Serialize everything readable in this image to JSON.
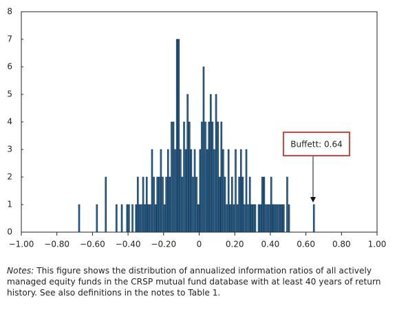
{
  "chart_data": {
    "type": "histogram",
    "bins": [
      -0.7,
      -0.69,
      -0.68,
      -0.67,
      -0.66,
      -0.65,
      -0.64,
      -0.63,
      -0.62,
      -0.61,
      -0.6,
      -0.59,
      -0.58,
      -0.57,
      -0.56,
      -0.55,
      -0.54,
      -0.53,
      -0.52,
      -0.51,
      -0.5,
      -0.49,
      -0.48,
      -0.47,
      -0.46,
      -0.45,
      -0.44,
      -0.43,
      -0.42,
      -0.41,
      -0.4,
      -0.39,
      -0.38,
      -0.37,
      -0.36,
      -0.35,
      -0.34,
      -0.33,
      -0.32,
      -0.31,
      -0.3,
      -0.29,
      -0.28,
      -0.27,
      -0.26,
      -0.25,
      -0.24,
      -0.23,
      -0.22,
      -0.21,
      -0.2,
      -0.19,
      -0.18,
      -0.17,
      -0.16,
      -0.15,
      -0.14,
      -0.13,
      -0.12,
      -0.11,
      -0.1,
      -0.09,
      -0.08,
      -0.07,
      -0.06,
      -0.05,
      -0.04,
      -0.03,
      -0.02,
      -0.01,
      0,
      0.01,
      0.02,
      0.03,
      0.04,
      0.05,
      0.06,
      0.07,
      0.08,
      0.09,
      0.1,
      0.11,
      0.12,
      0.13,
      0.14,
      0.15,
      0.16,
      0.17,
      0.18,
      0.19,
      0.2,
      0.21,
      0.22,
      0.23,
      0.24,
      0.25,
      0.26,
      0.27,
      0.28,
      0.29,
      0.3,
      0.31,
      0.32,
      0.33,
      0.34,
      0.35,
      0.36,
      0.37,
      0.38,
      0.39,
      0.4,
      0.41,
      0.42,
      0.43,
      0.44,
      0.45,
      0.46,
      0.47,
      0.48,
      0.49,
      0.5,
      0.51,
      0.52,
      0.53,
      0.54,
      0.55,
      0.56,
      0.57,
      0.58,
      0.59,
      0.6,
      0.61,
      0.62,
      0.63,
      0.64,
      0.65
    ],
    "values": [
      0,
      0,
      1,
      0,
      0,
      0,
      0,
      0,
      0,
      0,
      0,
      0,
      1,
      0,
      0,
      0,
      0,
      2,
      0,
      0,
      0,
      0,
      0,
      1,
      0,
      0,
      1,
      0,
      0,
      1,
      1,
      0,
      1,
      0,
      1,
      2,
      1,
      1,
      2,
      1,
      2,
      1,
      1,
      3,
      2,
      1,
      2,
      2,
      3,
      2,
      1,
      2,
      3,
      2,
      4,
      4,
      3,
      7,
      7,
      3,
      2,
      4,
      3,
      5,
      4,
      3,
      2,
      3,
      2,
      1,
      3,
      4,
      6,
      4,
      3,
      4,
      5,
      4,
      3,
      5,
      4,
      2,
      4,
      3,
      2,
      1,
      3,
      1,
      2,
      1,
      3,
      1,
      2,
      3,
      2,
      1,
      3,
      1,
      2,
      1,
      1,
      1,
      0,
      1,
      1,
      2,
      2,
      1,
      1,
      1,
      2,
      1,
      1,
      1,
      1,
      1,
      1,
      1,
      0,
      2,
      1,
      0,
      0,
      0,
      0,
      0,
      0,
      0,
      0,
      0,
      0,
      0,
      0,
      0,
      1
    ],
    "color": "#2e6a9a",
    "xlim": [
      -1,
      1
    ],
    "xticks": [
      {
        "value": -1,
        "label": "−1.00"
      },
      {
        "value": -0.8,
        "label": "−0.80"
      },
      {
        "value": -0.6,
        "label": "−0.60"
      },
      {
        "value": -0.4,
        "label": "−0.40"
      },
      {
        "value": -0.2,
        "label": "−0.20"
      },
      0,
      {
        "value": 0.2,
        "label": "0.20"
      },
      {
        "value": 0.4,
        "label": "0.40"
      },
      {
        "value": 0.6,
        "label": "0.60"
      },
      {
        "value": 0.8,
        "label": "0.80"
      },
      {
        "value": 1,
        "label": "1.00"
      }
    ],
    "ylim": [
      0,
      8
    ],
    "yticks": [
      0,
      1,
      2,
      3,
      4,
      5,
      6,
      7,
      8
    ],
    "annotation": "Buffett: 0.64",
    "notes_label": "Notes:",
    "notes": "This figure shows the distribution of annualized information ratios of all actively managed equity funds in the CRSP mutual fund database with at least 40 years of return history. See also definitions in the notes to Table 1."
  }
}
